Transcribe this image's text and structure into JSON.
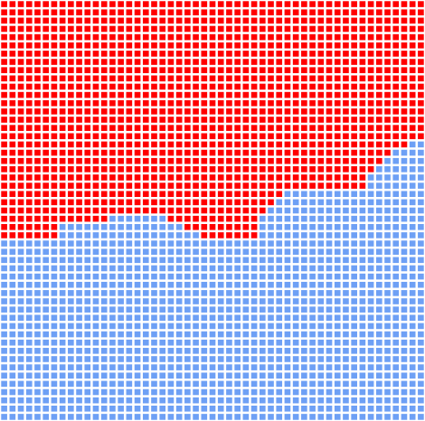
{
  "colors": {
    "upper": "#ff0000",
    "lower": "#6ea0f5",
    "gap": "#ffffff"
  },
  "grid": {
    "columns": 51,
    "rows": 51,
    "boundary_row_by_column": [
      29,
      29,
      29,
      29,
      29,
      29,
      29,
      27,
      27,
      27,
      27,
      27,
      27,
      26,
      26,
      26,
      26,
      26,
      26,
      26,
      27,
      27,
      28,
      28,
      29,
      29,
      29,
      29,
      29,
      29,
      29,
      26,
      25,
      24,
      23,
      23,
      23,
      23,
      23,
      23,
      23,
      23,
      23,
      23,
      21,
      20,
      19,
      18,
      18,
      17,
      17
    ]
  }
}
